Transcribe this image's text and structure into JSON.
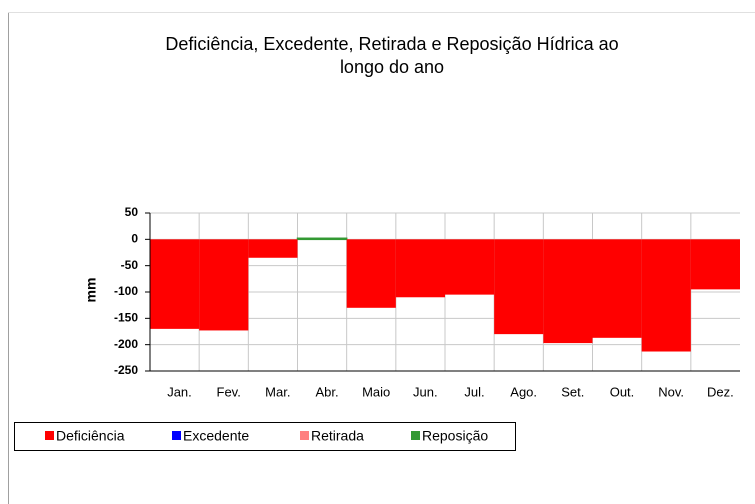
{
  "chart_data": {
    "type": "step-area",
    "title": "Deficiência, Excedente, Retirada e Reposição Hídrica ao longo do ano",
    "y_label": "mm",
    "categories": [
      "Jan.",
      "Fev.",
      "Mar.",
      "Abr.",
      "Maio",
      "Jun.",
      "Jul.",
      "Ago.",
      "Set.",
      "Out.",
      "Nov.",
      "Dez."
    ],
    "series": [
      {
        "name": "Deficiência",
        "color": "#ff0000",
        "values": [
          -170,
          -173,
          -35,
          0,
          -130,
          -110,
          -105,
          -180,
          -197,
          -187,
          -213,
          -95
        ]
      },
      {
        "name": "Excedente",
        "color": "#0000ff",
        "values": [
          0,
          0,
          0,
          0,
          0,
          0,
          0,
          0,
          0,
          0,
          0,
          0
        ]
      },
      {
        "name": "Retirada",
        "color": "#ff8080",
        "values": [
          0,
          0,
          0,
          0,
          0,
          0,
          0,
          0,
          0,
          0,
          0,
          0
        ]
      },
      {
        "name": "Reposição",
        "color": "#339933",
        "values": [
          0,
          0,
          0,
          2,
          0,
          0,
          0,
          0,
          0,
          0,
          0,
          0
        ]
      }
    ],
    "ylim": [
      -250,
      50
    ],
    "yticks": [
      -250,
      -200,
      -150,
      -100,
      -50,
      0,
      50
    ],
    "grid": true
  }
}
